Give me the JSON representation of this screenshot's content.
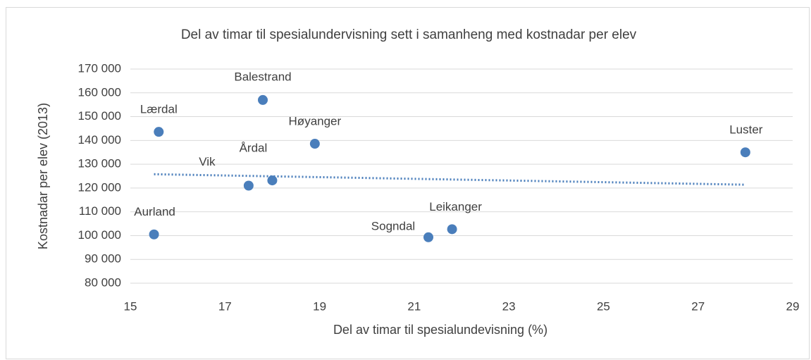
{
  "chart_data": {
    "type": "scatter",
    "title": "Del av timar til spesialundervisning sett i samanheng med kostnadar per elev",
    "xlabel": "Del av timar til spesialundevisning (%)",
    "ylabel": "Kostnadar per elev (2013)",
    "labels": [
      "Aurland",
      "Lærdal",
      "Balestrand",
      "Vik",
      "Årdal",
      "Høyanger",
      "Sogndal",
      "Leikanger",
      "Luster"
    ],
    "x": [
      15.5,
      15.6,
      17.8,
      17.5,
      18.0,
      18.9,
      21.3,
      21.8,
      28.0
    ],
    "values": [
      100500,
      143600,
      157000,
      121000,
      123200,
      138600,
      99300,
      102700,
      135000
    ],
    "color": "#4a7ebb",
    "trendline": {
      "x": [
        15.5,
        28
      ],
      "values": [
        125800,
        121400
      ],
      "color": "#4a7ebb"
    },
    "xlim": [
      15,
      29
    ],
    "xticks": [
      15,
      17,
      19,
      21,
      23,
      25,
      27,
      29
    ],
    "ylim": [
      80000,
      170000
    ],
    "yticks": [
      {
        "value": 80000,
        "label": "80 000"
      },
      {
        "value": 90000,
        "label": "90 000"
      },
      {
        "value": 100000,
        "label": "100 000"
      },
      {
        "value": 110000,
        "label": "110 000"
      },
      {
        "value": 120000,
        "label": "120 000"
      },
      {
        "value": 130000,
        "label": "130 000"
      },
      {
        "value": 140000,
        "label": "140 000"
      },
      {
        "value": 150000,
        "label": "150 000"
      },
      {
        "value": 160000,
        "label": "160 000"
      },
      {
        "value": 170000,
        "label": "170 000"
      }
    ],
    "grid": true
  }
}
